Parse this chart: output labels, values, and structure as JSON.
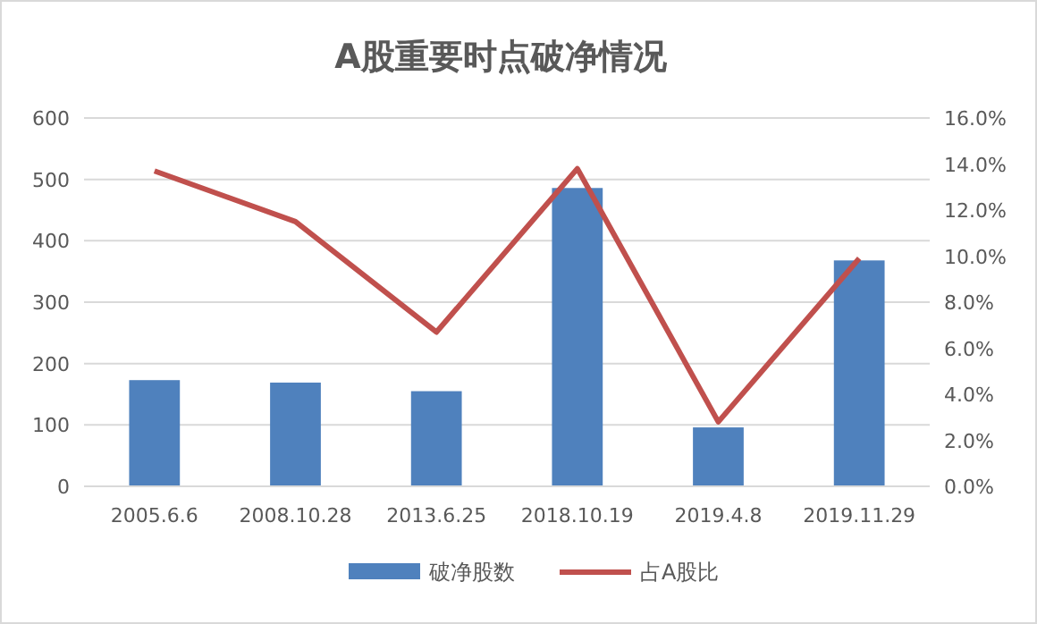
{
  "chart_data": {
    "type": "bar",
    "title": "A股重要时点破净情况",
    "categories": [
      "2005.6.6",
      "2008.10.28",
      "2013.6.25",
      "2018.10.19",
      "2019.4.8",
      "2019.11.29"
    ],
    "series": [
      {
        "name": "破净股数",
        "color": "#4f81bd",
        "values": [
          173,
          169,
          155,
          486,
          96,
          368
        ]
      },
      {
        "name": "占A股比",
        "type": "line",
        "axis": "y2",
        "color": "#c0504d",
        "values": [
          13.7,
          11.5,
          6.7,
          13.8,
          2.8,
          9.9
        ],
        "marker": "none"
      }
    ],
    "ylim": [
      0,
      600
    ],
    "yticks": [
      0,
      100,
      200,
      300,
      400,
      500,
      600
    ],
    "y2lim": [
      0,
      16
    ],
    "y2ticks": [
      {
        "value": 0,
        "label": "0.0%"
      },
      {
        "value": 2,
        "label": "2.0%"
      },
      {
        "value": 4,
        "label": "4.0%"
      },
      {
        "value": 6,
        "label": "6.0%"
      },
      {
        "value": 8,
        "label": "8.0%"
      },
      {
        "value": 10,
        "label": "10.0%"
      },
      {
        "value": 12,
        "label": "12.0%"
      },
      {
        "value": 14,
        "label": "14.0%"
      },
      {
        "value": 16,
        "label": "16.0%"
      }
    ],
    "grid": "y",
    "legend": "bottom"
  }
}
